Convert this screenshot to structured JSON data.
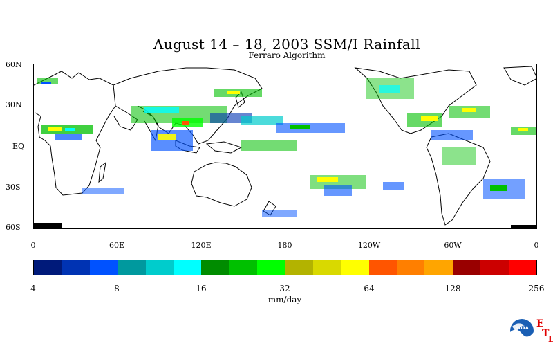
{
  "title": "August 14 – 18, 2003 SSM/I Rainfall",
  "subtitle": "Ferraro Algorithm",
  "map": {
    "lat_labels": [
      "60N",
      "30N",
      "EQ",
      "30S",
      "60S"
    ],
    "lon_labels": [
      "0",
      "60E",
      "120E",
      "180",
      "120W",
      "60W",
      "0"
    ]
  },
  "colorbar": {
    "colors": [
      "#001a7a",
      "#0033b3",
      "#0052ff",
      "#00999e",
      "#00cccc",
      "#00ffff",
      "#008c00",
      "#00c000",
      "#00ff00",
      "#b3b300",
      "#d9d900",
      "#ffff00",
      "#ff5500",
      "#ff7f00",
      "#ffa500",
      "#990000",
      "#cc0000",
      "#ff0000"
    ],
    "labels": [
      "4",
      "8",
      "16",
      "32",
      "64",
      "128",
      "256"
    ],
    "unit": "mm/day"
  },
  "logo": {
    "text": "NOAA",
    "side_letters": [
      "E",
      "T",
      "L"
    ]
  }
}
